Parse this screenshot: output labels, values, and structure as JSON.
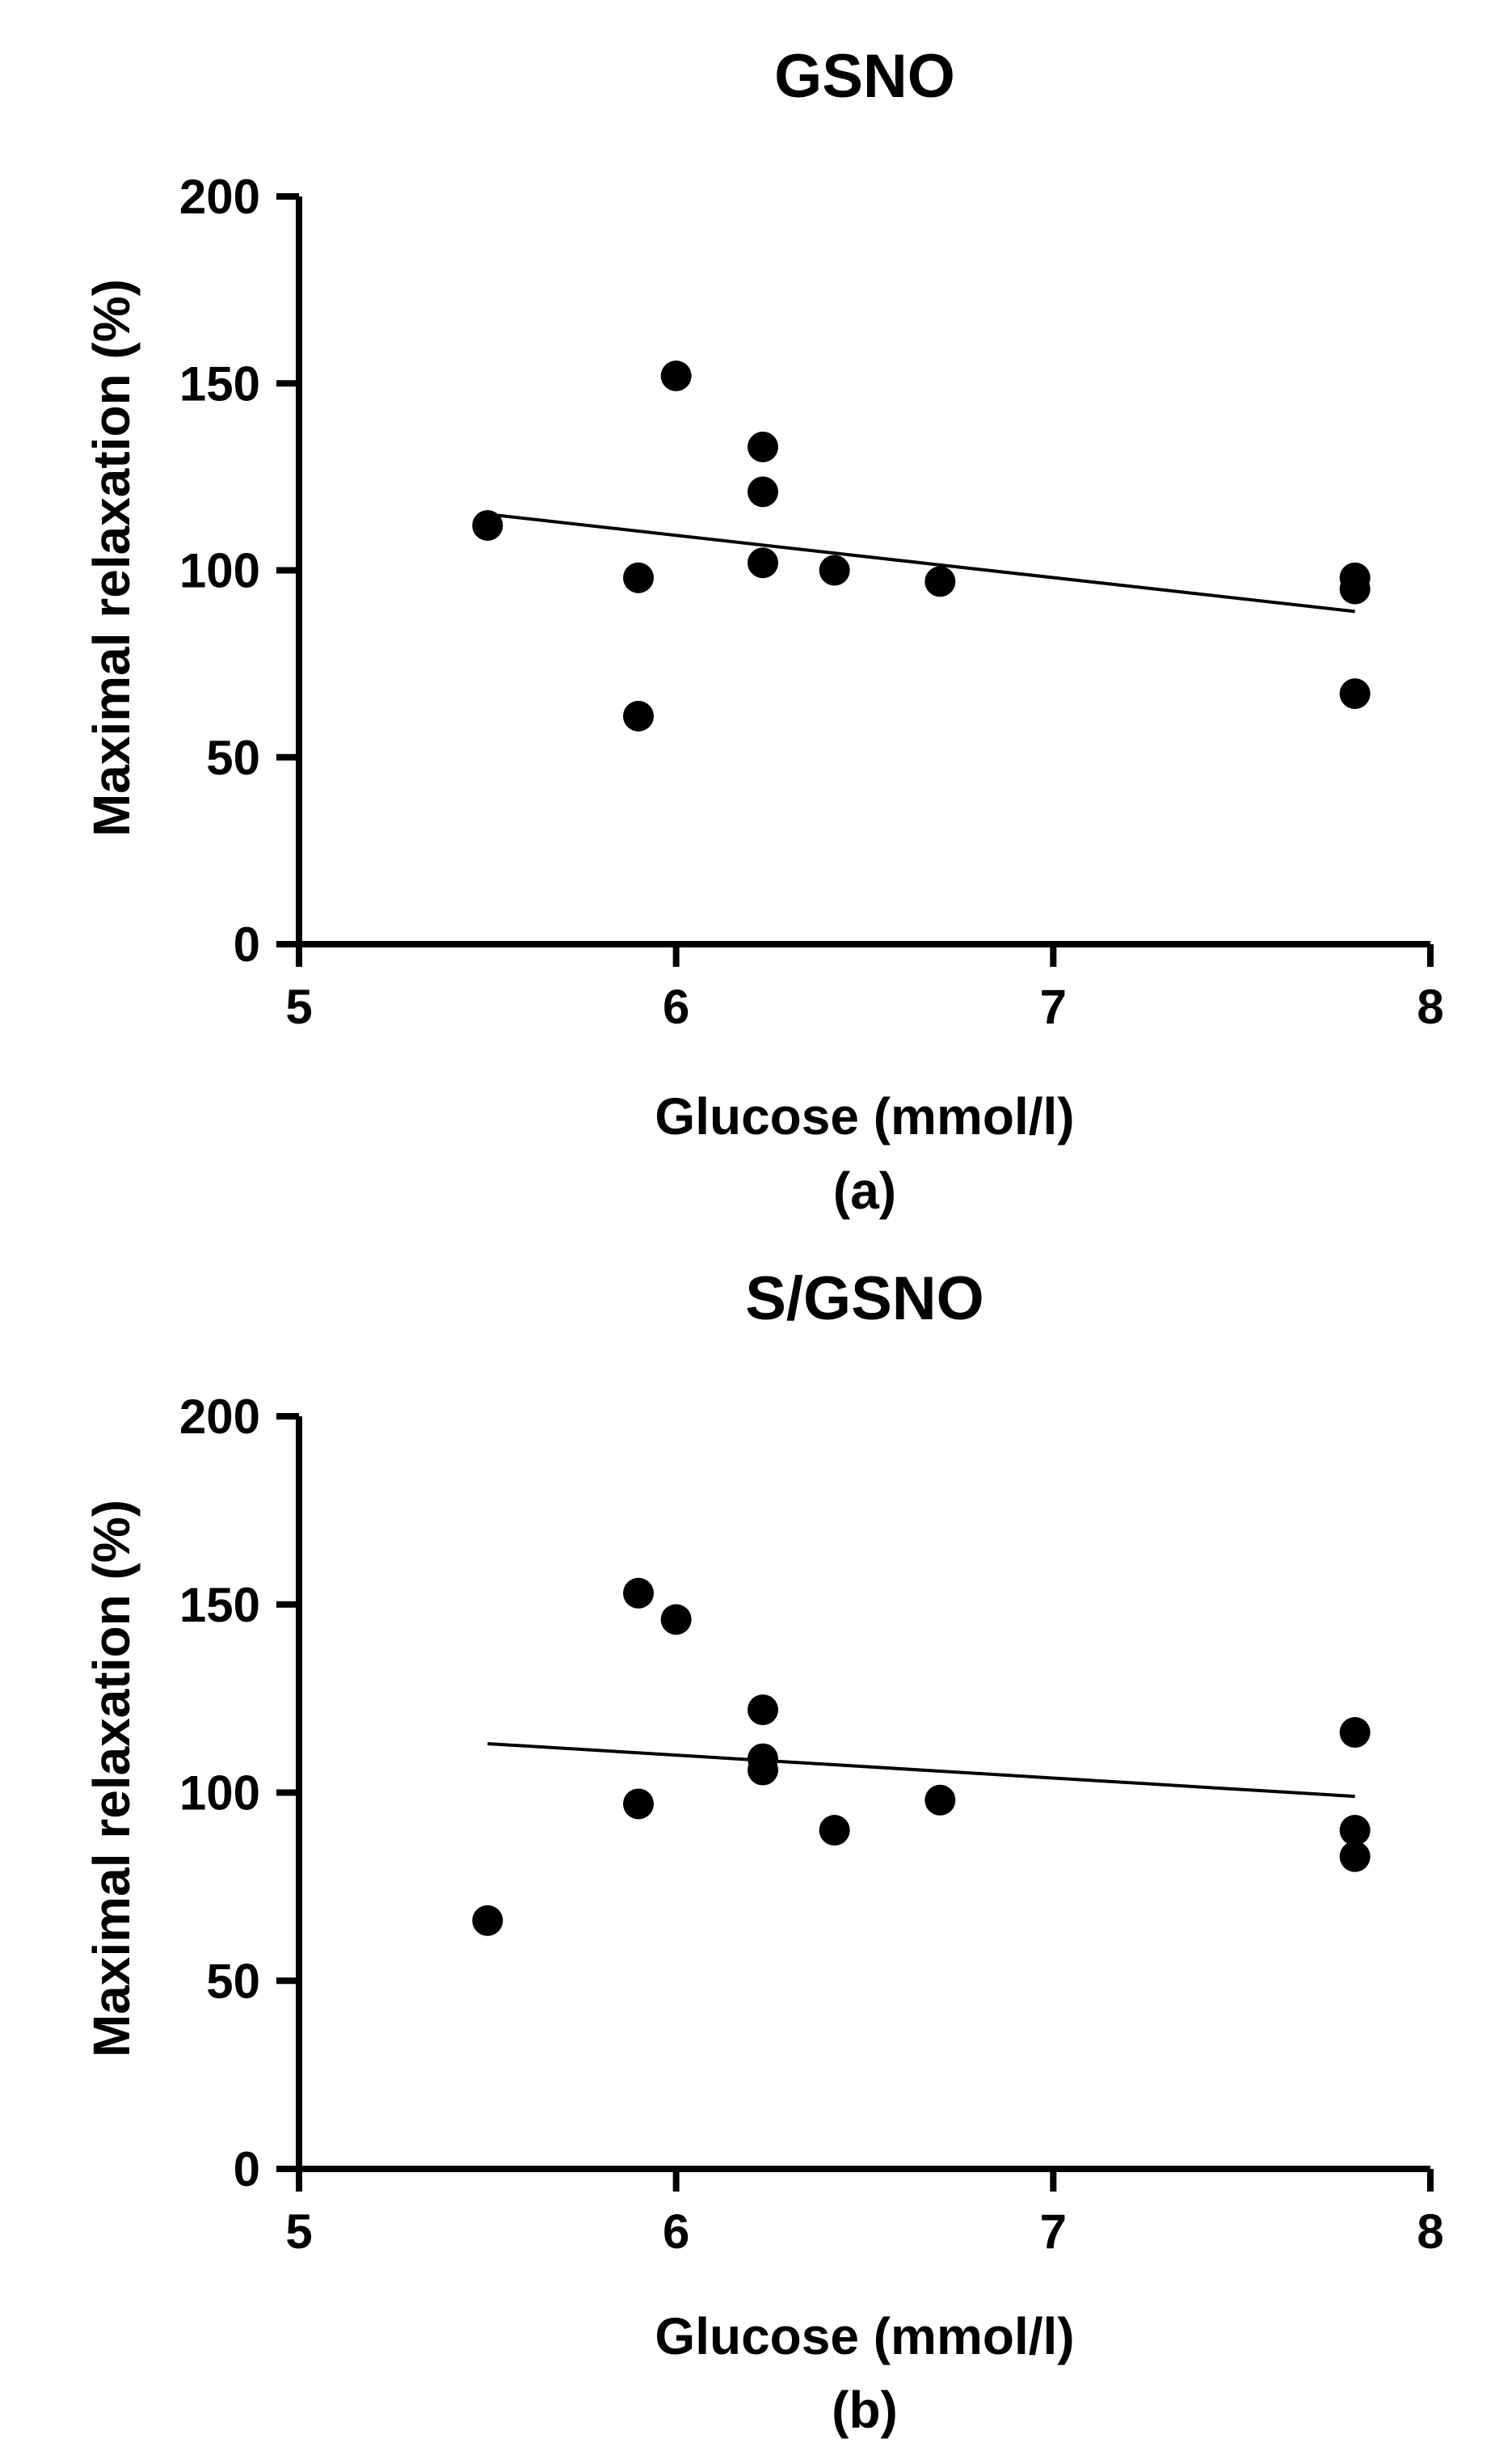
{
  "chart_data": [
    {
      "type": "scatter",
      "title": "GSNO",
      "panel_label": "(a)",
      "xlabel": "Glucose (mmol/l)",
      "ylabel": "Maximal relaxation (%)",
      "xlim": [
        5,
        8
      ],
      "ylim": [
        0,
        200
      ],
      "xticks": [
        5,
        6,
        7,
        8
      ],
      "yticks": [
        0,
        50,
        100,
        150,
        200
      ],
      "points": [
        {
          "x": 5.5,
          "y": 112
        },
        {
          "x": 5.9,
          "y": 98
        },
        {
          "x": 5.9,
          "y": 61
        },
        {
          "x": 6.0,
          "y": 152
        },
        {
          "x": 6.23,
          "y": 133
        },
        {
          "x": 6.23,
          "y": 121
        },
        {
          "x": 6.23,
          "y": 102
        },
        {
          "x": 6.42,
          "y": 100
        },
        {
          "x": 6.7,
          "y": 97
        },
        {
          "x": 7.8,
          "y": 98
        },
        {
          "x": 7.8,
          "y": 95
        },
        {
          "x": 7.8,
          "y": 67
        }
      ],
      "regression": {
        "x": [
          5.5,
          7.8
        ],
        "y": [
          115,
          89
        ]
      }
    },
    {
      "type": "scatter",
      "title": "S/GSNO",
      "panel_label": "(b)",
      "xlabel": "Glucose (mmol/l)",
      "ylabel": "Maximal relaxation (%)",
      "xlim": [
        5,
        8
      ],
      "ylim": [
        0,
        200
      ],
      "xticks": [
        5,
        6,
        7,
        8
      ],
      "yticks": [
        0,
        50,
        100,
        150,
        200
      ],
      "points": [
        {
          "x": 5.5,
          "y": 66
        },
        {
          "x": 5.9,
          "y": 153
        },
        {
          "x": 5.9,
          "y": 97
        },
        {
          "x": 6.0,
          "y": 146
        },
        {
          "x": 6.23,
          "y": 122
        },
        {
          "x": 6.23,
          "y": 109
        },
        {
          "x": 6.23,
          "y": 106
        },
        {
          "x": 6.42,
          "y": 90
        },
        {
          "x": 6.7,
          "y": 98
        },
        {
          "x": 7.8,
          "y": 116
        },
        {
          "x": 7.8,
          "y": 90
        },
        {
          "x": 7.8,
          "y": 83
        }
      ],
      "regression": {
        "x": [
          5.5,
          7.8
        ],
        "y": [
          113,
          99
        ]
      }
    }
  ]
}
